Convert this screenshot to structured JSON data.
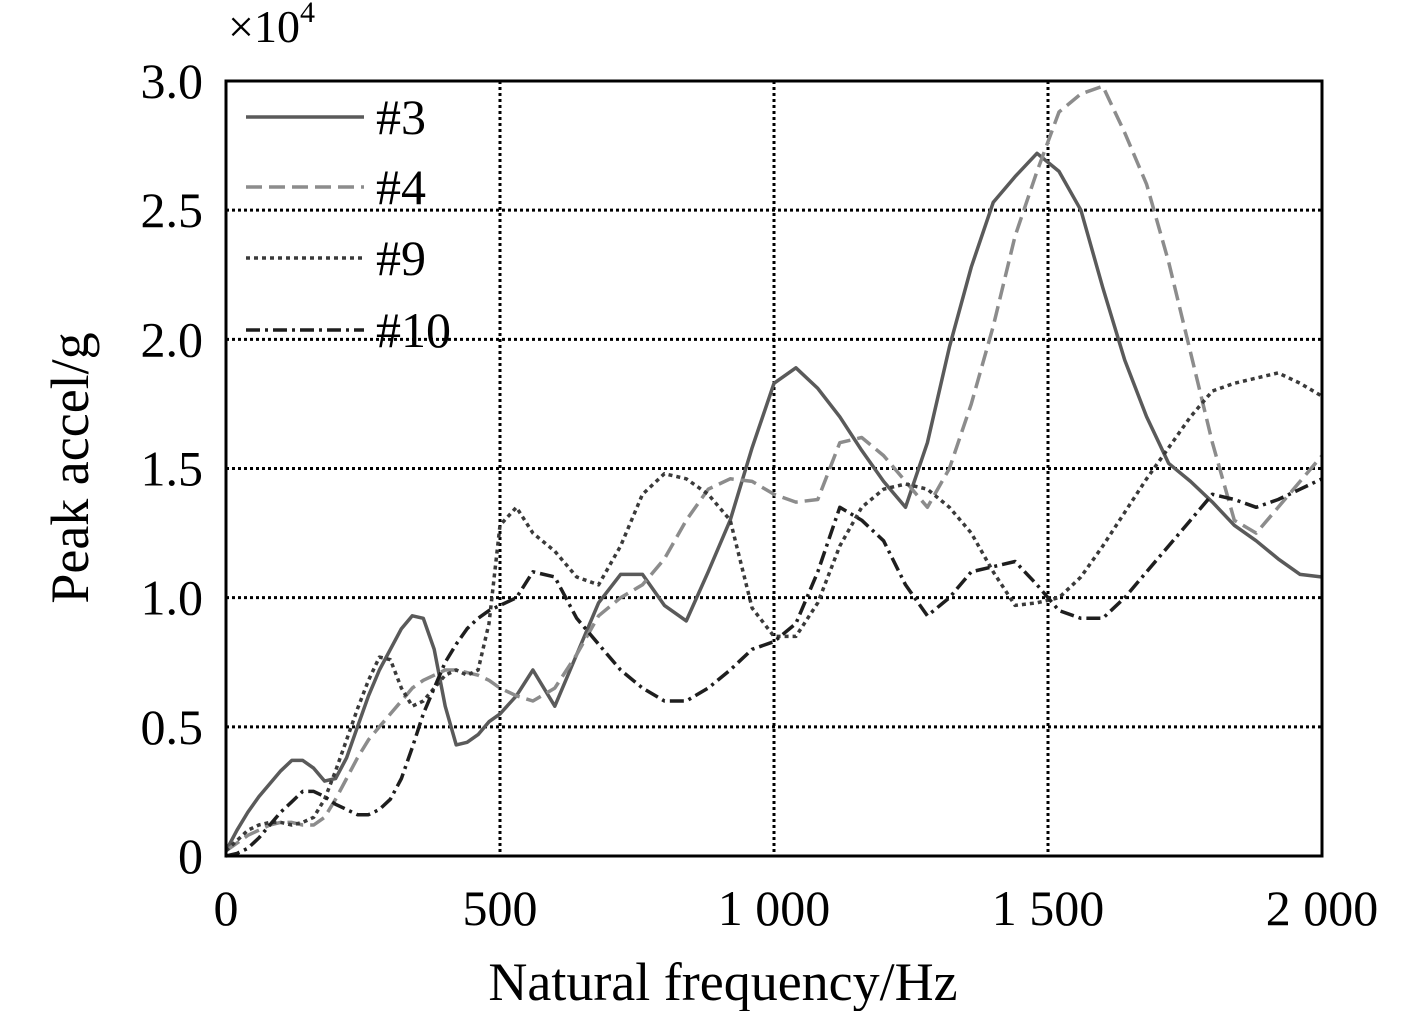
{
  "chart_data": {
    "type": "line",
    "title": "",
    "xlabel": "Natural frequency/Hz",
    "ylabel": "Peak accel/g",
    "y_multiplier": "×10",
    "y_multiplier_exponent": "4",
    "xlim": [
      0,
      2000
    ],
    "ylim": [
      0,
      3.0
    ],
    "x_ticks": [
      0,
      500,
      1000,
      1500,
      2000
    ],
    "x_tick_labels": [
      "0",
      "500",
      "1 000",
      "1 500",
      "2 000"
    ],
    "y_ticks": [
      0,
      0.5,
      1.0,
      1.5,
      2.0,
      2.5,
      3.0
    ],
    "y_tick_labels": [
      "0",
      "0.5",
      "1.0",
      "1.5",
      "2.0",
      "2.5",
      "3.0"
    ],
    "grid": true,
    "legend_position": "top-left",
    "series": [
      {
        "name": "#3",
        "color": "#5a5a5a",
        "dash": "solid",
        "x": [
          0,
          20,
          40,
          60,
          80,
          100,
          120,
          140,
          160,
          180,
          200,
          220,
          240,
          260,
          280,
          300,
          320,
          340,
          360,
          380,
          400,
          420,
          440,
          460,
          480,
          500,
          530,
          560,
          600,
          640,
          680,
          720,
          760,
          800,
          840,
          880,
          920,
          960,
          1000,
          1040,
          1080,
          1120,
          1160,
          1200,
          1240,
          1280,
          1320,
          1360,
          1400,
          1440,
          1480,
          1520,
          1560,
          1600,
          1640,
          1680,
          1720,
          1760,
          1800,
          1840,
          1880,
          1920,
          1960,
          2000
        ],
        "y": [
          0.02,
          0.1,
          0.17,
          0.23,
          0.28,
          0.33,
          0.37,
          0.37,
          0.34,
          0.29,
          0.3,
          0.38,
          0.5,
          0.62,
          0.72,
          0.8,
          0.88,
          0.93,
          0.92,
          0.8,
          0.58,
          0.43,
          0.44,
          0.47,
          0.52,
          0.55,
          0.62,
          0.72,
          0.58,
          0.78,
          0.98,
          1.09,
          1.09,
          0.97,
          0.91,
          1.1,
          1.3,
          1.58,
          1.83,
          1.89,
          1.81,
          1.7,
          1.57,
          1.45,
          1.35,
          1.6,
          1.97,
          2.28,
          2.53,
          2.63,
          2.72,
          2.65,
          2.5,
          2.2,
          1.92,
          1.7,
          1.52,
          1.45,
          1.37,
          1.28,
          1.22,
          1.15,
          1.09,
          1.08
        ]
      },
      {
        "name": "#4",
        "color": "#8c8c8c",
        "dash": "long-dash",
        "x": [
          0,
          20,
          40,
          60,
          80,
          100,
          120,
          140,
          160,
          180,
          200,
          220,
          240,
          260,
          280,
          300,
          320,
          340,
          360,
          380,
          400,
          420,
          440,
          460,
          480,
          500,
          530,
          560,
          600,
          640,
          680,
          720,
          760,
          800,
          840,
          880,
          920,
          960,
          1000,
          1040,
          1080,
          1120,
          1160,
          1200,
          1240,
          1280,
          1320,
          1360,
          1400,
          1440,
          1480,
          1520,
          1560,
          1600,
          1640,
          1680,
          1720,
          1760,
          1800,
          1840,
          1880,
          1920,
          1960,
          2000
        ],
        "y": [
          0.02,
          0.05,
          0.08,
          0.1,
          0.12,
          0.13,
          0.13,
          0.12,
          0.12,
          0.15,
          0.22,
          0.3,
          0.38,
          0.45,
          0.5,
          0.55,
          0.6,
          0.65,
          0.68,
          0.7,
          0.72,
          0.72,
          0.71,
          0.7,
          0.68,
          0.65,
          0.62,
          0.6,
          0.65,
          0.78,
          0.93,
          1.0,
          1.05,
          1.15,
          1.3,
          1.42,
          1.46,
          1.45,
          1.4,
          1.37,
          1.38,
          1.6,
          1.62,
          1.55,
          1.45,
          1.35,
          1.5,
          1.75,
          2.05,
          2.4,
          2.65,
          2.88,
          2.95,
          2.98,
          2.8,
          2.6,
          2.3,
          1.95,
          1.6,
          1.3,
          1.25,
          1.35,
          1.45,
          1.55
        ]
      },
      {
        "name": "#9",
        "color": "#3a3a3a",
        "dash": "dotted",
        "x": [
          0,
          20,
          40,
          60,
          80,
          100,
          120,
          140,
          160,
          180,
          200,
          220,
          240,
          260,
          280,
          300,
          320,
          340,
          360,
          380,
          400,
          420,
          440,
          460,
          480,
          500,
          530,
          560,
          600,
          640,
          680,
          720,
          760,
          800,
          840,
          880,
          920,
          960,
          1000,
          1040,
          1080,
          1120,
          1160,
          1200,
          1240,
          1280,
          1320,
          1360,
          1400,
          1440,
          1480,
          1520,
          1560,
          1600,
          1640,
          1680,
          1720,
          1760,
          1800,
          1840,
          1880,
          1920,
          1960,
          2000
        ],
        "y": [
          0.02,
          0.06,
          0.1,
          0.12,
          0.13,
          0.13,
          0.12,
          0.13,
          0.15,
          0.22,
          0.33,
          0.45,
          0.57,
          0.68,
          0.77,
          0.76,
          0.65,
          0.58,
          0.6,
          0.65,
          0.7,
          0.72,
          0.7,
          0.72,
          0.9,
          1.28,
          1.35,
          1.25,
          1.18,
          1.08,
          1.05,
          1.2,
          1.4,
          1.48,
          1.46,
          1.4,
          1.3,
          0.96,
          0.85,
          0.85,
          0.98,
          1.2,
          1.35,
          1.42,
          1.44,
          1.42,
          1.35,
          1.25,
          1.1,
          0.97,
          0.98,
          1.0,
          1.08,
          1.2,
          1.33,
          1.46,
          1.58,
          1.7,
          1.8,
          1.83,
          1.85,
          1.87,
          1.83,
          1.78
        ]
      },
      {
        "name": "#10",
        "color": "#1e1e1e",
        "dash": "dash-dot",
        "x": [
          0,
          20,
          40,
          60,
          80,
          100,
          120,
          140,
          160,
          180,
          200,
          220,
          240,
          260,
          280,
          300,
          320,
          340,
          360,
          380,
          400,
          420,
          440,
          460,
          480,
          500,
          530,
          560,
          600,
          640,
          680,
          720,
          760,
          800,
          840,
          880,
          920,
          960,
          1000,
          1040,
          1080,
          1120,
          1160,
          1200,
          1240,
          1280,
          1320,
          1360,
          1400,
          1440,
          1480,
          1520,
          1560,
          1600,
          1640,
          1680,
          1720,
          1760,
          1800,
          1840,
          1880,
          1920,
          1960,
          2000
        ],
        "y": [
          0.0,
          0.01,
          0.03,
          0.07,
          0.12,
          0.17,
          0.21,
          0.25,
          0.25,
          0.23,
          0.2,
          0.18,
          0.16,
          0.16,
          0.18,
          0.22,
          0.3,
          0.42,
          0.55,
          0.65,
          0.75,
          0.82,
          0.88,
          0.92,
          0.95,
          0.97,
          1.0,
          1.1,
          1.08,
          0.92,
          0.82,
          0.72,
          0.65,
          0.6,
          0.6,
          0.65,
          0.72,
          0.8,
          0.83,
          0.9,
          1.1,
          1.35,
          1.3,
          1.22,
          1.05,
          0.93,
          1.0,
          1.1,
          1.12,
          1.14,
          1.05,
          0.95,
          0.92,
          0.92,
          1.0,
          1.1,
          1.2,
          1.3,
          1.4,
          1.38,
          1.35,
          1.38,
          1.42,
          1.46
        ]
      }
    ]
  }
}
